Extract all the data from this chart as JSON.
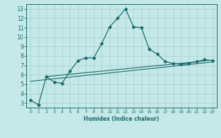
{
  "title": "",
  "xlabel": "Humidex (Indice chaleur)",
  "bg_color": "#c5e8e8",
  "grid_color": "#aad4d4",
  "line_color": "#1a6b6b",
  "xlim": [
    -0.5,
    23.5
  ],
  "ylim": [
    2.5,
    13.5
  ],
  "xticks": [
    0,
    1,
    2,
    3,
    4,
    5,
    6,
    7,
    8,
    9,
    10,
    11,
    12,
    13,
    14,
    15,
    16,
    17,
    18,
    19,
    20,
    21,
    22,
    23
  ],
  "yticks": [
    3,
    4,
    5,
    6,
    7,
    8,
    9,
    10,
    11,
    12,
    13
  ],
  "main_x": [
    0,
    1,
    2,
    3,
    4,
    5,
    6,
    7,
    8,
    9,
    10,
    11,
    12,
    13,
    14,
    15,
    16,
    17,
    18,
    19,
    20,
    21,
    22,
    23
  ],
  "main_y": [
    3.3,
    2.8,
    5.8,
    5.2,
    5.1,
    6.4,
    7.5,
    7.8,
    7.8,
    9.3,
    11.1,
    12.0,
    13.0,
    11.1,
    11.0,
    8.7,
    8.2,
    7.4,
    7.2,
    7.1,
    7.2,
    7.4,
    7.6,
    7.5
  ],
  "line2_x": [
    2,
    23
  ],
  "line2_y": [
    5.8,
    7.55
  ],
  "line3_x": [
    0,
    23
  ],
  "line3_y": [
    5.3,
    7.35
  ]
}
